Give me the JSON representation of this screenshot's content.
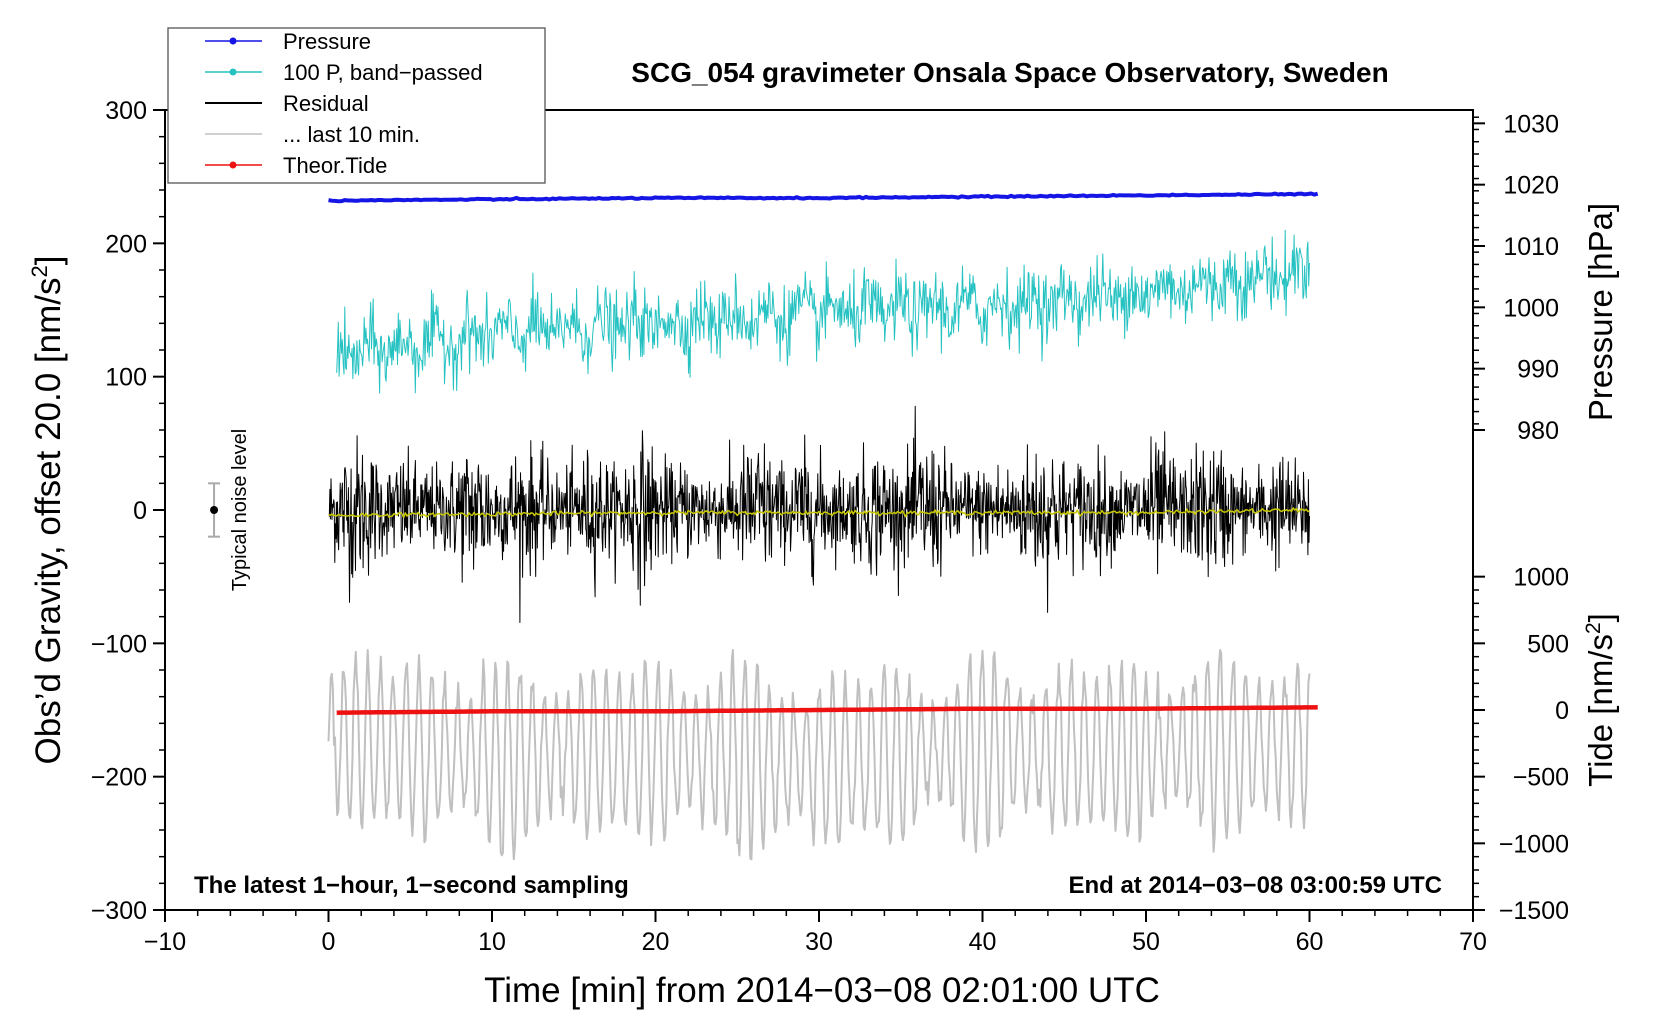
{
  "chart_data": {
    "type": "line",
    "title": "SCG_054 gravimeter Onsala Space Observatory, Sweden",
    "xlabel": "Time [min] from 2014−03−08 02:01:00 UTC",
    "ylabel_left_main": "Obs’d Gravity, offset 20.0 [nm/s",
    "ylabel_left_sup": "2",
    "ylabel_left_end": "]",
    "ylabel_pressure": "Pressure [hPa]",
    "ylabel_tide_main": "Tide [nm/s",
    "ylabel_tide_sup": "2",
    "ylabel_tide_end": "]",
    "xlim": [
      -10,
      70
    ],
    "ylim": [
      -300,
      300
    ],
    "xticks": [
      -10,
      0,
      10,
      20,
      30,
      40,
      50,
      60,
      70
    ],
    "xtick_labels": [
      "−10",
      "0",
      "10",
      "20",
      "30",
      "40",
      "50",
      "60",
      "70"
    ],
    "yticks": [
      -300,
      -200,
      -100,
      0,
      100,
      200,
      300
    ],
    "ytick_labels": [
      "−300",
      "−200",
      "−100",
      "0",
      "100",
      "200",
      "300"
    ],
    "pressure_axis": {
      "ticks": [
        980,
        990,
        1000,
        1010,
        1020,
        1030
      ],
      "tick_labels": [
        "980",
        "990",
        "1000",
        "1010",
        "1020",
        "1030"
      ],
      "gravity_at_980": 60,
      "gravity_per_hpa": 4.6
    },
    "tide_axis": {
      "ticks": [
        -1500,
        -1000,
        -500,
        0,
        500,
        1000
      ],
      "tick_labels": [
        "−1500",
        "−1000",
        "−500",
        "0",
        "500",
        "1000"
      ],
      "gravity_at_zero": -150,
      "gravity_per_unit": 0.1
    },
    "annotations": {
      "bottom_left": "The latest 1−hour, 1−second sampling",
      "bottom_right": "End at 2014−03−08 03:00:59 UTC",
      "noise_label": "Typical noise level",
      "noise_bar": {
        "x": -7.0,
        "center": 0,
        "half_width": 20
      }
    },
    "legend": {
      "position": "top-left",
      "entries": [
        {
          "label": "Pressure",
          "color": "#1515e6",
          "marker": true
        },
        {
          "label": "100 P, band−passed",
          "color": "#26c2c2",
          "marker": true
        },
        {
          "label": "Residual",
          "color": "#000000",
          "marker": false
        },
        {
          "label": "... last 10 min.",
          "color": "#c0c0c0",
          "marker": false
        },
        {
          "label": "Theor.Tide",
          "color": "#ee1111",
          "marker": true
        }
      ]
    },
    "series": [
      {
        "name": "Pressure",
        "color": "#1515e6",
        "x": [
          0,
          10,
          20,
          30,
          40,
          50,
          60.5
        ],
        "y": [
          232,
          233,
          234,
          234,
          235,
          236,
          237
        ]
      },
      {
        "name": "100 P, band−passed",
        "color": "#26c2c2",
        "x": [
          0,
          10,
          20,
          30,
          40,
          50,
          60
        ],
        "y": [
          115,
          132,
          140,
          148,
          152,
          163,
          180
        ]
      },
      {
        "name": "Residual",
        "color": "#000000",
        "x": [
          0,
          10,
          20,
          30,
          40,
          50,
          60
        ],
        "y": [
          0,
          0,
          0,
          0,
          0,
          0,
          0
        ]
      },
      {
        "name": "Residual smoothed",
        "color": "#c8c800",
        "x": [
          0,
          10,
          20,
          30,
          40,
          50,
          60
        ],
        "y": [
          -4,
          -3,
          -2,
          -2,
          -2,
          -2,
          0
        ]
      },
      {
        "name": "... last 10 min.",
        "color": "#c0c0c0",
        "x": [
          0,
          10,
          20,
          30,
          40,
          50,
          60
        ],
        "y": [
          -170,
          -185,
          -180,
          -190,
          -180,
          -180,
          -175
        ]
      },
      {
        "name": "Theor.Tide",
        "color": "#ee1111",
        "x": [
          0.5,
          10,
          20,
          30,
          40,
          50,
          60.5
        ],
        "y": [
          -152,
          -151,
          -151,
          -150,
          -149,
          -149,
          -148
        ]
      }
    ]
  }
}
